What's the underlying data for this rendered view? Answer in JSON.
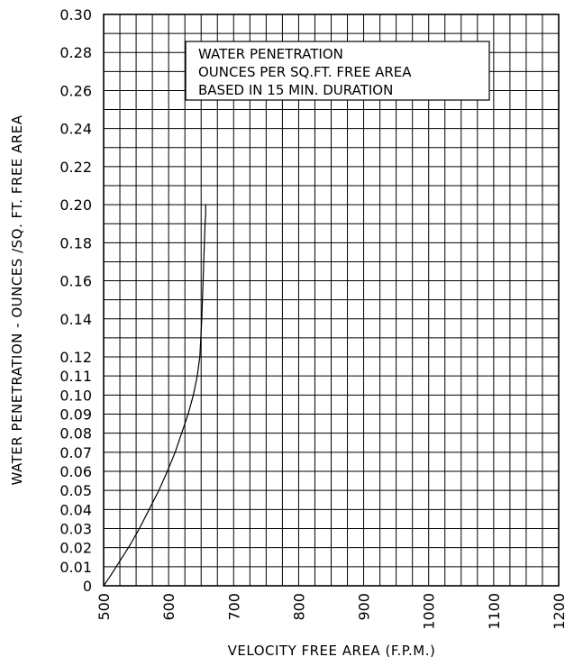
{
  "chart_data": {
    "type": "line",
    "xlabel": "VELOCITY FREE AREA (F.P.M.)",
    "ylabel": "WATER PENETRATION - OUNCES /SQ. FT.  FREE AREA",
    "legend": {
      "lines": [
        "WATER PENETRATION",
        "OUNCES PER SQ.FT. FREE AREA",
        "BASED IN 15 MIN. DURATION"
      ],
      "placement": "top-right"
    },
    "xlim": [
      500,
      1200
    ],
    "x_ticks": [
      "500",
      "600",
      "700",
      "800",
      "900",
      "1000",
      "1100",
      "1200"
    ],
    "y_ticks": [
      "0",
      "0.01",
      "0.02",
      "0.03",
      "0.04",
      "0.05",
      "0.06",
      "0.07",
      "0.08",
      "0.09",
      "0.10",
      "0.11",
      "0.12",
      "0.14",
      "0.16",
      "0.18",
      "0.20",
      "0.22",
      "0.24",
      "0.26",
      "0.28",
      "0.30"
    ],
    "grid": true,
    "series": [
      {
        "x": [
          500,
          510,
          525,
          540,
          555,
          570,
          585,
          598,
          610,
          620,
          630,
          638,
          644,
          648,
          651,
          653,
          655,
          656,
          657,
          657
        ],
        "y": [
          0,
          0.005,
          0.013,
          0.021,
          0.03,
          0.04,
          0.05,
          0.06,
          0.07,
          0.08,
          0.09,
          0.1,
          0.11,
          0.12,
          0.14,
          0.16,
          0.18,
          0.19,
          0.195,
          0.2
        ]
      }
    ]
  }
}
